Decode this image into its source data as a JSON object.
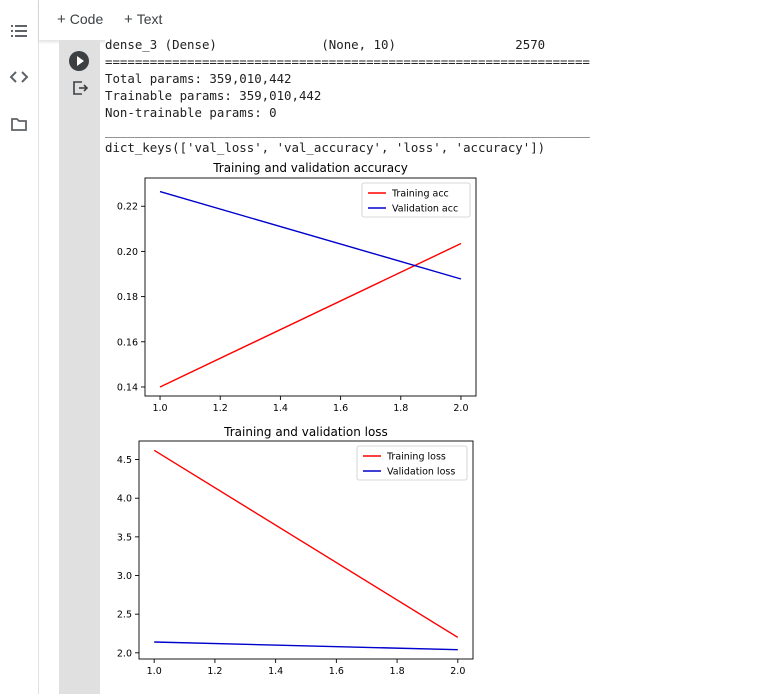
{
  "toolbar": {
    "code_label": "Code",
    "text_label": "Text"
  },
  "sidebar": {
    "icons": [
      "toc-icon",
      "code-snippets-icon",
      "files-icon"
    ]
  },
  "output": {
    "lines": [
      "dense_3 (Dense)              (None, 10)                2570",
      "=================================================================",
      "Total params: 359,010,442",
      "Trainable params: 359,010,442",
      "Non-trainable params: 0",
      "_________________________________________________________________",
      "dict_keys(['val_loss', 'val_accuracy', 'loss', 'accuracy'])"
    ]
  },
  "chart_data": [
    {
      "type": "line",
      "title": "Training and validation accuracy",
      "xlabel": "",
      "ylabel": "",
      "xlim": [
        0.95,
        2.05
      ],
      "ylim": [
        0.136,
        0.2325
      ],
      "xticks": [
        1.0,
        1.2,
        1.4,
        1.6,
        1.8,
        2.0
      ],
      "xtick_labels": [
        "1.0",
        "1.2",
        "1.4",
        "1.6",
        "1.8",
        "2.0"
      ],
      "yticks": [
        0.14,
        0.16,
        0.18,
        0.2,
        0.22
      ],
      "ytick_labels": [
        "0.14",
        "0.16",
        "0.18",
        "0.20",
        "0.22"
      ],
      "legend": "upper-right",
      "series": [
        {
          "name": "Training acc",
          "color": "#ff0000",
          "x": [
            1,
            2
          ],
          "y": [
            0.14,
            0.2035
          ]
        },
        {
          "name": "Validation acc",
          "color": "#0000cc",
          "x": [
            1,
            2
          ],
          "y": [
            0.2265,
            0.1878
          ]
        }
      ]
    },
    {
      "type": "line",
      "title": "Training and validation loss",
      "xlabel": "",
      "ylabel": "",
      "xlim": [
        0.95,
        2.05
      ],
      "ylim": [
        1.92,
        4.74
      ],
      "xticks": [
        1.0,
        1.2,
        1.4,
        1.6,
        1.8,
        2.0
      ],
      "xtick_labels": [
        "1.0",
        "1.2",
        "1.4",
        "1.6",
        "1.8",
        "2.0"
      ],
      "yticks": [
        2.0,
        2.5,
        3.0,
        3.5,
        4.0,
        4.5
      ],
      "ytick_labels": [
        "2.0",
        "2.5",
        "3.0",
        "3.5",
        "4.0",
        "4.5"
      ],
      "legend": "upper-right",
      "series": [
        {
          "name": "Training loss",
          "color": "#ff0000",
          "x": [
            1,
            2
          ],
          "y": [
            4.62,
            2.2
          ]
        },
        {
          "name": "Validation loss",
          "color": "#0000cc",
          "x": [
            1,
            2
          ],
          "y": [
            2.14,
            2.04
          ]
        }
      ]
    }
  ]
}
